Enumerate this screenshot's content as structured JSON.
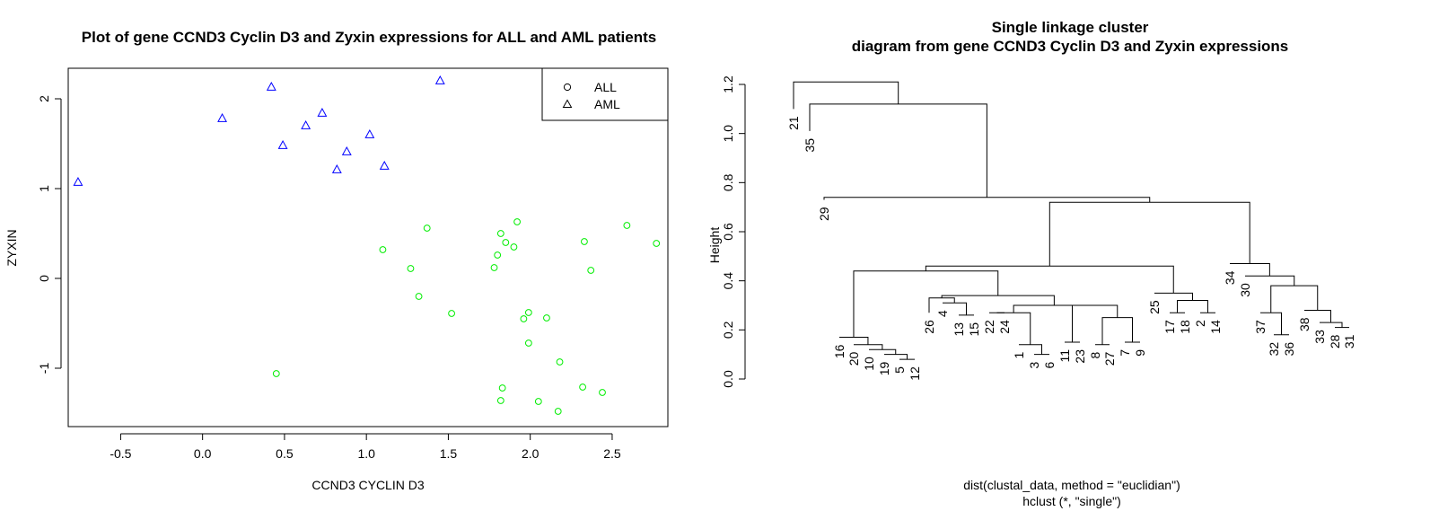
{
  "chart_data": [
    {
      "type": "scatter",
      "title": "Plot of gene CCND3 Cyclin D3 and Zyxin expressions for ALL and AML patients",
      "xlabel": "CCND3 CYCLIN D3",
      "ylabel": "ZYXIN",
      "xticks": [
        "-0.5",
        "0.0",
        "0.5",
        "1.0",
        "1.5",
        "2.0",
        "2.5"
      ],
      "yticks": [
        "-1",
        "0",
        "1",
        "2"
      ],
      "xlim": [
        -0.82,
        2.84
      ],
      "ylim": [
        -1.65,
        2.34
      ],
      "legend_position": "top-right",
      "series": [
        {
          "name": "ALL",
          "marker": "circle",
          "color": "#00ee00",
          "points": [
            [
              0.45,
              -1.06
            ],
            [
              1.1,
              0.32
            ],
            [
              1.27,
              0.11
            ],
            [
              1.32,
              -0.2
            ],
            [
              1.37,
              0.56
            ],
            [
              1.52,
              -0.39
            ],
            [
              1.78,
              0.12
            ],
            [
              1.8,
              0.26
            ],
            [
              1.82,
              -1.36
            ],
            [
              1.82,
              0.5
            ],
            [
              1.83,
              -1.22
            ],
            [
              1.85,
              0.4
            ],
            [
              1.9,
              0.35
            ],
            [
              1.92,
              0.63
            ],
            [
              1.96,
              -0.45
            ],
            [
              1.99,
              -0.72
            ],
            [
              1.99,
              -0.38
            ],
            [
              2.05,
              -1.37
            ],
            [
              2.1,
              -0.44
            ],
            [
              2.17,
              -1.48
            ],
            [
              2.18,
              -0.93
            ],
            [
              2.32,
              -1.21
            ],
            [
              2.33,
              0.41
            ],
            [
              2.37,
              0.09
            ],
            [
              2.44,
              -1.27
            ],
            [
              2.59,
              0.59
            ],
            [
              2.77,
              0.39
            ]
          ]
        },
        {
          "name": "AML",
          "marker": "triangle",
          "color": "#0000ff",
          "points": [
            [
              -0.76,
              1.07
            ],
            [
              0.12,
              1.78
            ],
            [
              0.42,
              2.13
            ],
            [
              0.49,
              1.48
            ],
            [
              0.63,
              1.7
            ],
            [
              0.73,
              1.84
            ],
            [
              0.82,
              1.21
            ],
            [
              0.88,
              1.41
            ],
            [
              1.02,
              1.6
            ],
            [
              1.11,
              1.25
            ],
            [
              1.45,
              2.2
            ]
          ]
        }
      ]
    },
    {
      "type": "dendrogram",
      "title": "Single linkage cluster",
      "subtitle": "diagram from gene CCND3 Cyclin D3 and Zyxin expressions",
      "ylabel": "Height",
      "xlabel_line1": "dist(clustal_data, method = \"euclidian\")",
      "xlabel_line2": "hclust (*, \"single\")",
      "yticks": [
        "0.0",
        "0.2",
        "0.4",
        "0.6",
        "0.8",
        "1.0",
        "1.2"
      ],
      "ylim": [
        -0.02,
        1.25
      ],
      "leaf_order": [
        "21",
        "35",
        "29",
        "16",
        "20",
        "10",
        "19",
        "5",
        "12",
        "26",
        "4",
        "13",
        "15",
        "22",
        "24",
        "1",
        "3",
        "6",
        "11",
        "23",
        "8",
        "27",
        "7",
        "9",
        "25",
        "17",
        "18",
        "2",
        "14",
        "34",
        "30",
        "37",
        "32",
        "36",
        "38",
        "33",
        "28",
        "31"
      ],
      "merges": [
        [
          "5",
          "12",
          0.08
        ],
        [
          "19",
          "5+12",
          0.1
        ],
        [
          "10",
          "19+5+12",
          0.12
        ],
        [
          "20",
          "10+19+5+12",
          0.14
        ],
        [
          "16",
          "20+10+19+5+12",
          0.17
        ],
        [
          "13",
          "15",
          0.26
        ],
        [
          "4",
          "13+15",
          0.31
        ],
        [
          "26",
          "4+13+15",
          0.33
        ],
        [
          "22",
          "24",
          0.27
        ],
        [
          "3",
          "6",
          0.1
        ],
        [
          "1",
          "3+6",
          0.14
        ],
        [
          "22+24",
          "1+3+6",
          0.27
        ],
        [
          "8",
          "27",
          0.14
        ],
        [
          "7",
          "9",
          0.15
        ],
        [
          "8+27",
          "7+9",
          0.25
        ],
        [
          "11",
          "23",
          0.15
        ],
        [
          "11+23",
          "8+27+7+9",
          0.3
        ],
        [
          "22+24+1+3+6",
          "11+23+8+27+7+9",
          0.3
        ],
        [
          "26+4+13+15",
          "22+24+1+3+6+11+23+8+27+7+9",
          0.34
        ],
        [
          "16+20+10+19+5+12",
          "26+..+9",
          0.44
        ],
        [
          "17",
          "18",
          0.27
        ],
        [
          "2",
          "14",
          0.27
        ],
        [
          "17+18",
          "2+14",
          0.32
        ],
        [
          "25",
          "17+18+2+14",
          0.35
        ],
        [
          "16..9",
          "25+17+18+2+14",
          0.46
        ],
        [
          "28",
          "31",
          0.21
        ],
        [
          "33",
          "28+31",
          0.23
        ],
        [
          "38",
          "33+28+31",
          0.28
        ],
        [
          "36",
          "32",
          0.18
        ],
        [
          "37",
          "32+36",
          0.27
        ],
        [
          "37+32+36",
          "38+33+28+31",
          0.38
        ],
        [
          "30",
          "37..31",
          0.42
        ],
        [
          "34",
          "30+37..31",
          0.47
        ],
        [
          "16..14",
          "34..31",
          0.72
        ],
        [
          "29",
          "16..31",
          0.74
        ],
        [
          "35",
          "29..31",
          1.12
        ],
        [
          "21",
          "35..31",
          1.21
        ]
      ]
    }
  ]
}
